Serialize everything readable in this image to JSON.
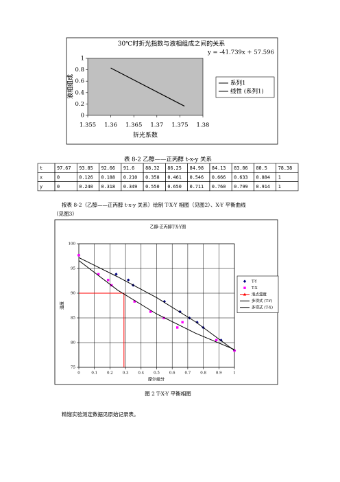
{
  "chart_data": [
    {
      "type": "line",
      "title": "30℃时折光指数与液相组成之间的关系",
      "annotation": "y = -41.739x + 57.596",
      "x_label": "折光系数",
      "y_label": "液相组成",
      "xlim": [
        1.355,
        1.38
      ],
      "xticks": [
        1.355,
        1.36,
        1.365,
        1.37,
        1.375,
        1.38
      ],
      "ylim": [
        0,
        1
      ],
      "yticks": [
        0,
        0.2,
        0.4,
        0.6,
        0.8,
        1
      ],
      "grid": false,
      "plot_color": "#c0c0c0",
      "series": [
        {
          "name": "系列1",
          "color": "#000000",
          "marker": null,
          "x": [
            1.36,
            1.376
          ],
          "values": [
            0.83,
            0.16
          ]
        },
        {
          "name": "线性 (系列1)",
          "color": "#000000",
          "marker": null,
          "x": [
            1.36,
            1.376
          ],
          "values": [
            0.831,
            0.163
          ]
        }
      ]
    },
    {
      "type": "scatter",
      "title": "乙醇-正丙醇T-X-Y图",
      "x_label": "摩尔组分",
      "y_label": "温度",
      "xlim": [
        0,
        1
      ],
      "xticks": [
        0,
        0.1,
        0.2,
        0.3,
        0.4,
        0.5,
        0.6,
        0.7,
        0.8,
        0.9,
        1
      ],
      "ylim": [
        75,
        100
      ],
      "yticks": [
        75,
        80,
        85,
        90,
        95,
        100
      ],
      "grid": true,
      "series": [
        {
          "name": "T-Y",
          "color": "#000080",
          "marker": "diamond",
          "line": false,
          "x": [
            0,
            0.24,
            0.318,
            0.349,
            0.55,
            0.65,
            0.711,
            0.76,
            0.799,
            0.914,
            1
          ],
          "values": [
            97.67,
            93.85,
            92.66,
            91.6,
            88.32,
            86.25,
            84.98,
            84.13,
            83.06,
            80.5,
            78.38
          ]
        },
        {
          "name": "T-X",
          "color": "#ff00ff",
          "marker": "square",
          "line": false,
          "x": [
            0,
            0.126,
            0.188,
            0.21,
            0.358,
            0.461,
            0.546,
            0.666,
            0.633,
            0.884,
            1
          ],
          "values": [
            97.67,
            93.85,
            92.66,
            91.6,
            88.32,
            86.25,
            84.98,
            84.13,
            83.06,
            80.5,
            78.38
          ]
        },
        {
          "name": "泡点温度",
          "color": "#ff0000",
          "marker": "triangle",
          "line": true,
          "x": [
            0,
            0.29,
            0.29
          ],
          "values": [
            90,
            90,
            75
          ]
        },
        {
          "name": "多项式 (T-Y)",
          "color": "#000000",
          "marker": null,
          "line": true,
          "x": [
            0,
            0.25,
            0.5,
            0.75,
            1
          ],
          "values": [
            97.2,
            93.3,
            89.1,
            84.2,
            78.4
          ]
        },
        {
          "name": "多项式 (T-X)",
          "color": "#000000",
          "marker": null,
          "line": true,
          "x": [
            0,
            0.25,
            0.5,
            0.75,
            1
          ],
          "values": [
            96.6,
            90.6,
            85.8,
            81.9,
            78.6
          ]
        }
      ]
    }
  ],
  "document": {
    "table_caption": "表 8-2   乙醇——正丙醇   t-x-y 关系",
    "table": {
      "rows": [
        [
          "t",
          "97.67",
          "93.85",
          "92.66",
          "91.6",
          "88.32",
          "86.25",
          "84.98",
          "84.13",
          "83.06",
          "80.5",
          "78.38"
        ],
        [
          "x",
          "0",
          "0.126",
          "0.188",
          "0.210",
          "0.358",
          "0.461",
          "0.546",
          "0.666",
          "0.633",
          "0.884",
          "1"
        ],
        [
          "y",
          "0",
          "0.240",
          "0.318",
          "0.349",
          "0.550",
          "0.650",
          "0.711",
          "0.760",
          "0.799",
          "0.914",
          "1"
        ]
      ]
    },
    "paragraph_1": "按表 8-2（乙醇——正丙醇 t-x-y 关系）绘制 T-X-Y 相图（见图2）、X-Y 平衡曲线",
    "paragraph_1b": "（见图3）",
    "figure_caption": "图 2   T-X-Y 平衡相图",
    "paragraph_2": "精馏实验测定数据见原始记录表。"
  }
}
